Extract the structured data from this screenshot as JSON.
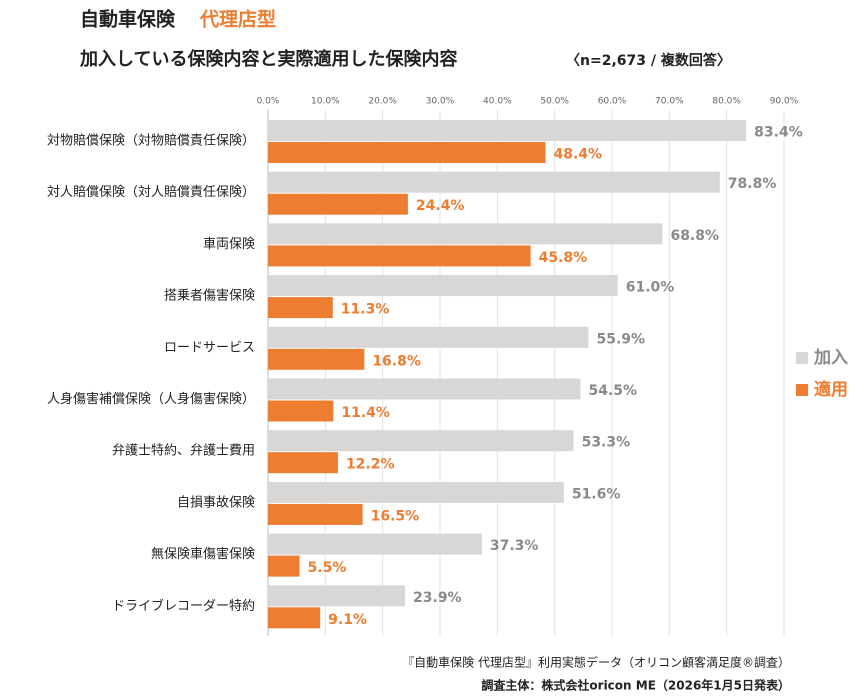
{
  "chart_data": {
    "type": "barh",
    "title": "自動車保険",
    "title_highlight": "代理店型",
    "subtitle": "加入している保険内容と実際適用した保険内容",
    "subtitle_note": "〈n=2,673 / 複数回答〉",
    "categories": [
      "対物賠償保険（対物賠償責任保険）",
      "対人賠償保険（対人賠償責任保険）",
      "車両保険",
      "搭乗者傷害保険",
      "ロードサービス",
      "人身傷害補償保険（人身傷害保険）",
      "弁護士特約、弁護士費用",
      "自損事故保険",
      "無保険車傷害保険",
      "ドライブレコーダー特約"
    ],
    "series": [
      {
        "name": "加入",
        "color": "#d9d6d6",
        "label_color": "#8a8a8a",
        "values": [
          83.4,
          78.8,
          68.8,
          61.0,
          55.9,
          54.5,
          53.3,
          51.6,
          37.3,
          23.9
        ],
        "value_labels": [
          "83.4%",
          "78.8%",
          "68.8%",
          "61.0%",
          "55.9%",
          "54.5%",
          "53.3%",
          "51.6%",
          "37.3%",
          "23.9%"
        ]
      },
      {
        "name": "適用",
        "color": "#ed7d31",
        "label_color": "#ed7d31",
        "values": [
          48.4,
          24.4,
          45.8,
          11.3,
          16.8,
          11.4,
          12.2,
          16.5,
          5.5,
          9.1
        ],
        "value_labels": [
          "48.4%",
          "24.4%",
          "45.8%",
          "11.3%",
          "16.8%",
          "11.4%",
          "12.2%",
          "16.5%",
          "5.5%",
          "9.1%"
        ]
      }
    ],
    "xlim": [
      0,
      90
    ],
    "xticks": [
      {
        "value": 0,
        "label": "0.0%"
      },
      {
        "value": 10,
        "label": "10.0%"
      },
      {
        "value": 20,
        "label": "20.0%"
      },
      {
        "value": 30,
        "label": "30.0%"
      },
      {
        "value": 40,
        "label": "40.0%"
      },
      {
        "value": 50,
        "label": "50.0%"
      },
      {
        "value": 60,
        "label": "60.0%"
      },
      {
        "value": 70,
        "label": "70.0%"
      },
      {
        "value": 80,
        "label": "80.0%"
      },
      {
        "value": 90,
        "label": "90.0%"
      }
    ],
    "grid": true,
    "legend": "right",
    "source": [
      "『自動車保険 代理店型』利用実態データ（オリコン顧客満足度®調査）",
      "調査主体：株式会社oricon ME（2026年1月5日発表）"
    ]
  }
}
